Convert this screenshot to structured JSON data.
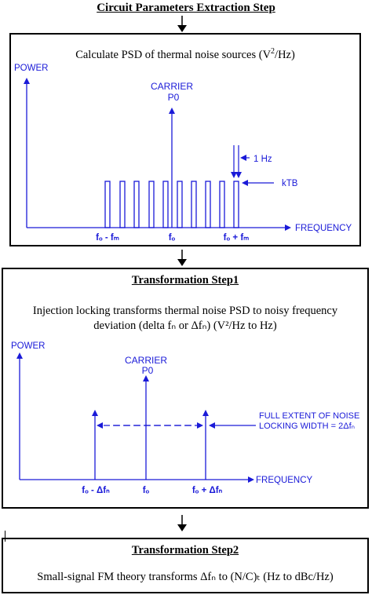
{
  "step1": {
    "title": "Circuit Parameters Extraction Step",
    "desc_pre": "Calculate PSD of thermal noise sources (V",
    "desc_sup": "2",
    "desc_post": "/Hz)",
    "power_label": "POWER",
    "carrier_label": "CARRIER",
    "p0_label": "P0",
    "bandwidth_label": "1 Hz",
    "ktb_label": "kTB",
    "frequency_label": "FREQUENCY",
    "tick_left": "fₒ - fₘ",
    "tick_center": "fₒ",
    "tick_right": "fₒ + fₘ"
  },
  "step2": {
    "title": "Transformation Step1",
    "desc_line1": "Injection locking transforms thermal noise PSD to noisy frequency",
    "desc_line2": "deviation (delta fₙ or Δfₙ) (V²/Hz to Hz)",
    "power_label": "POWER",
    "carrier_label": "CARRIER",
    "p0_label": "P0",
    "extent_line1": "FULL EXTENT OF NOISE",
    "extent_line2": "LOCKING WIDTH = 2Δfₙ",
    "frequency_label": "FREQUENCY",
    "tick_left": "fₒ - Δfₙ",
    "tick_center": "fₒ",
    "tick_right": "fₒ + Δfₙ"
  },
  "step3": {
    "title": "Transformation Step2",
    "desc": "Small-signal FM theory transforms Δfₙ to (N/C)ₜ (Hz to dBc/Hz)"
  },
  "colors": {
    "diagram": "#1a1ad8",
    "frame": "#000000"
  },
  "icons": [
    "down-arrow-icon",
    "down-arrow-icon",
    "down-arrow-icon"
  ]
}
